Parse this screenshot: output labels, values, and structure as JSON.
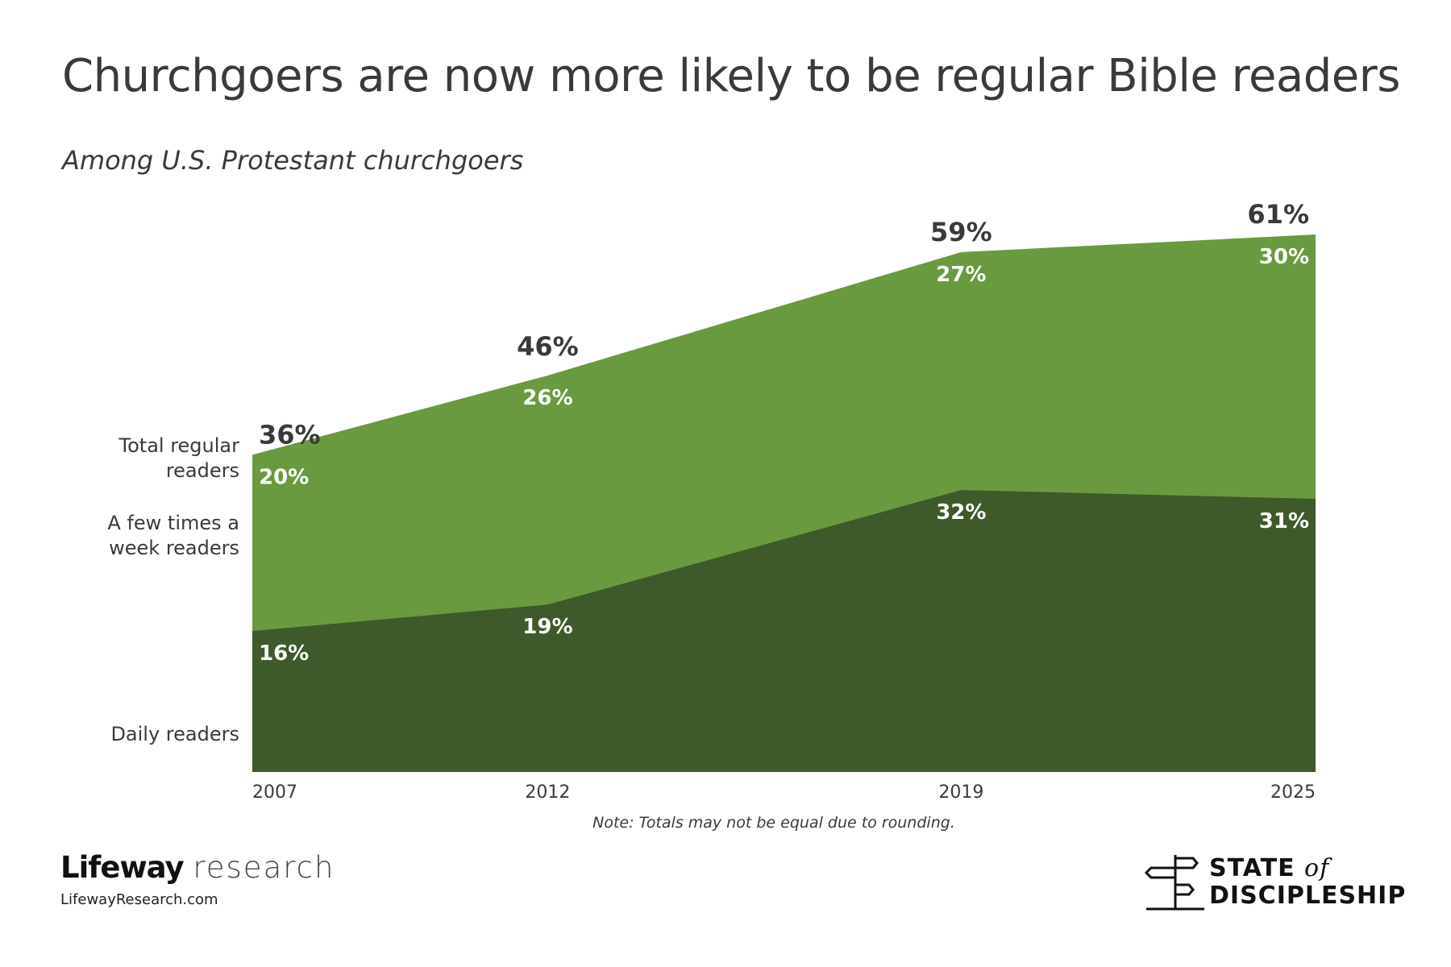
{
  "title": "Churchgoers are now more likely to be regular Bible readers",
  "subtitle": "Among U.S. Protestant churchgoers",
  "note": "Note: Totals may not be equal due to rounding.",
  "branding": {
    "left_logo_bold": "Lifeway",
    "left_logo_light": "research",
    "left_url": "LifewayResearch.com",
    "right_logo_line1": "STATE",
    "right_logo_of": "of",
    "right_logo_line2": "DISCIPLESHIP"
  },
  "colors": {
    "daily": "#3e5a2a",
    "few_times": "#6a9a40",
    "text": "#3a3a3a",
    "label_on_area": "#ffffff"
  },
  "chart_data": {
    "type": "area",
    "stacked": true,
    "title": "Churchgoers are now more likely to be regular Bible readers",
    "subtitle": "Among U.S. Protestant churchgoers",
    "x": [
      2007,
      2012,
      2019,
      2025
    ],
    "x_tick_labels": [
      "2007",
      "2012",
      "2019",
      "2025"
    ],
    "ylim": [
      0,
      61
    ],
    "grid": false,
    "series": [
      {
        "name": "Daily readers",
        "values": [
          16,
          19,
          32,
          31
        ],
        "labels": [
          "16%",
          "19%",
          "32%",
          "31%"
        ]
      },
      {
        "name": "A few times a week readers",
        "values": [
          20,
          26,
          27,
          30
        ],
        "labels": [
          "20%",
          "26%",
          "27%",
          "30%"
        ]
      }
    ],
    "totals": {
      "name": "Total regular readers",
      "values": [
        36,
        46,
        59,
        61
      ],
      "labels": [
        "36%",
        "46%",
        "59%",
        "61%"
      ]
    },
    "category_labels": {
      "total": "Total regular readers",
      "few_times": "A few times a week readers",
      "daily": "Daily readers"
    }
  }
}
